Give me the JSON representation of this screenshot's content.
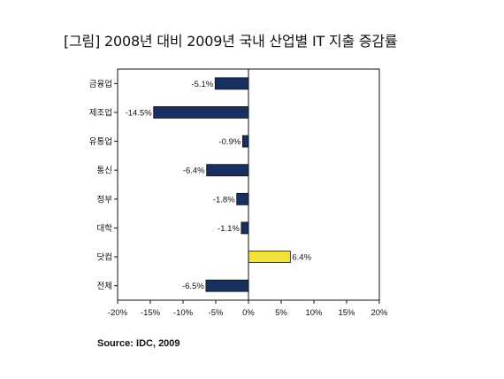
{
  "chart_data": {
    "type": "bar",
    "orientation": "horizontal",
    "title": "[그림]  2008년 대비 2009년 국내 산업별 IT 지출 증감률",
    "source": "Source: IDC, 2009",
    "categories": [
      "금융업",
      "제조업",
      "유통업",
      "통신",
      "정부",
      "대학",
      "닷컴",
      "전체"
    ],
    "values": [
      -5.1,
      -14.5,
      -0.9,
      -6.4,
      -1.8,
      -1.1,
      6.4,
      -6.5
    ],
    "value_labels": [
      "-5.1%",
      "-14.5%",
      "-0.9%",
      "-6.4%",
      "-1.8%",
      "-1.1%",
      "6.4%",
      "-6.5%"
    ],
    "xlim": [
      -20,
      20
    ],
    "x_ticks": [
      -20,
      -15,
      -10,
      -5,
      0,
      5,
      10,
      15,
      20
    ],
    "x_tick_labels": [
      "-20%",
      "-15%",
      "-10%",
      "-5%",
      "0%",
      "5%",
      "10%",
      "15%",
      "20%"
    ],
    "grid": false,
    "legend": "none",
    "colors": {
      "negative": "#17305f",
      "positive": "#f2e33c",
      "bar_edge": "#111111",
      "axis": "#111111"
    }
  }
}
